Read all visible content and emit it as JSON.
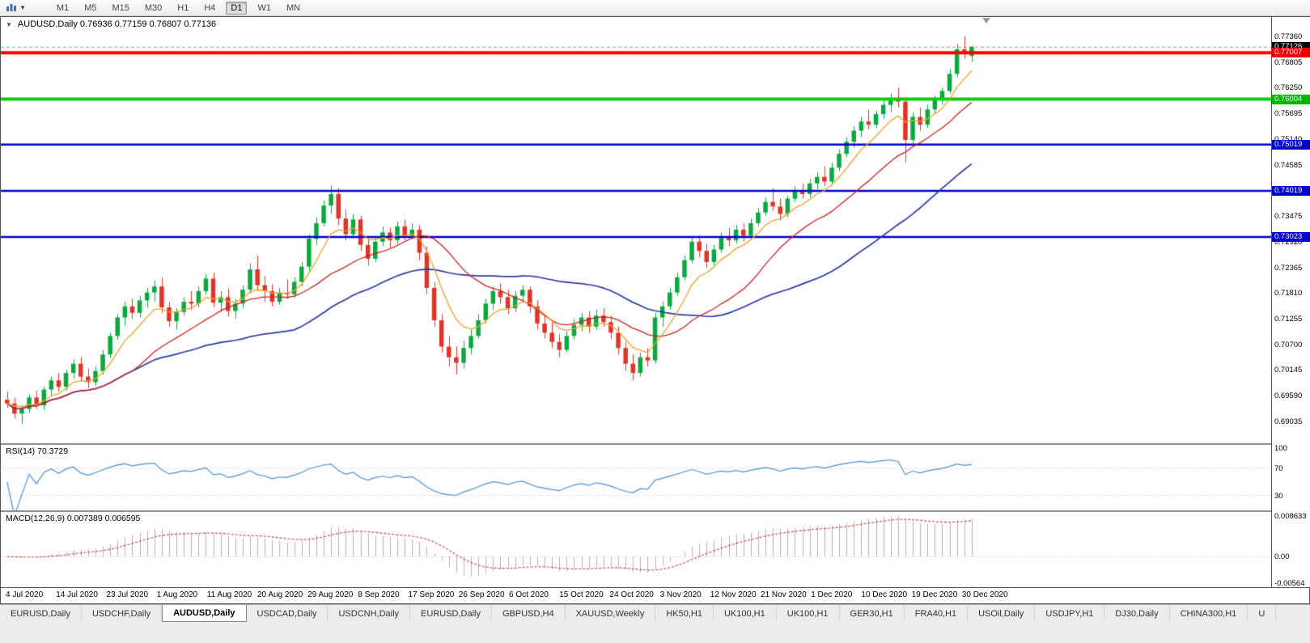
{
  "toolbar": {
    "periods": [
      "M1",
      "M5",
      "M15",
      "M30",
      "H1",
      "H4",
      "D1",
      "W1",
      "MN"
    ],
    "active_period": "D1"
  },
  "chart": {
    "symbol": "AUDUSD",
    "timeframe": "Daily",
    "title_text": "AUDUSD,Daily 0.76936 0.77159 0.76807 0.77136",
    "open": "0.76936",
    "high": "0.77159",
    "low": "0.76807",
    "close": "0.77136",
    "colors": {
      "up": "#0aa83f",
      "down": "#e03428",
      "ma_fast": "#eda32a",
      "ma_med": "#cc2222",
      "ma_slow": "#2a3aa0",
      "background": "#ffffff"
    },
    "bid_line": {
      "value": 0.77126,
      "color": "#a0a0a0"
    },
    "hlines": [
      {
        "value": 0.77007,
        "color": "#ff0000",
        "width": 4
      },
      {
        "value": 0.76004,
        "color": "#00d400",
        "width": 4
      },
      {
        "value": 0.75019,
        "color": "#0000d0",
        "width": 2.5
      },
      {
        "value": 0.74019,
        "color": "#0000d0",
        "width": 2.5
      },
      {
        "value": 0.73023,
        "color": "#0000d0",
        "width": 2.5
      }
    ],
    "price_axis_labels": [
      "0.77360",
      "0.76805",
      "0.76250",
      "0.75695",
      "0.75140",
      "0.74585",
      "0.73475",
      "0.72920",
      "0.72365",
      "0.71810",
      "0.71255",
      "0.70700",
      "0.70145",
      "0.69590",
      "0.69035"
    ],
    "price_boxes": [
      {
        "text": "0.77126",
        "value": 0.77126,
        "color": "#000000"
      },
      {
        "text": "0.77007",
        "value": 0.77007,
        "color": "#e80000"
      },
      {
        "text": "0.76004",
        "value": 0.76004,
        "color": "#00b400"
      },
      {
        "text": "0.75019",
        "value": 0.75019,
        "color": "#0000d0"
      },
      {
        "text": "0.74019",
        "value": 0.74019,
        "color": "#0000d0"
      },
      {
        "text": "0.73023",
        "value": 0.73023,
        "color": "#0000d0"
      }
    ]
  },
  "chart_data": {
    "type": "candlestick",
    "title": "AUDUSD,Daily",
    "ylim": [
      0.6856,
      0.7778
    ],
    "x_labels": [
      "4 Jul 2020",
      "14 Jul 2020",
      "23 Jul 2020",
      "1 Aug 2020",
      "11 Aug 2020",
      "20 Aug 2020",
      "29 Aug 2020",
      "8 Sep 2020",
      "17 Sep 2020",
      "26 Sep 2020",
      "6 Oct 2020",
      "15 Oct 2020",
      "24 Oct 2020",
      "3 Nov 2020",
      "12 Nov 2020",
      "21 Nov 2020",
      "1 Dec 2020",
      "10 Dec 2020",
      "19 Dec 2020",
      "30 Dec 2020"
    ],
    "candles": [
      [
        0.695,
        0.6968,
        0.6932,
        0.6942
      ],
      [
        0.6942,
        0.6955,
        0.691,
        0.692
      ],
      [
        0.692,
        0.6938,
        0.6898,
        0.693
      ],
      [
        0.693,
        0.6962,
        0.6922,
        0.6955
      ],
      [
        0.6955,
        0.697,
        0.693,
        0.6938
      ],
      [
        0.6938,
        0.6978,
        0.6928,
        0.6972
      ],
      [
        0.6972,
        0.7,
        0.696,
        0.6992
      ],
      [
        0.6992,
        0.7008,
        0.6968,
        0.6978
      ],
      [
        0.6978,
        0.7015,
        0.697,
        0.7008
      ],
      [
        0.7008,
        0.7038,
        0.6995,
        0.7028
      ],
      [
        0.7028,
        0.7042,
        0.699,
        0.7
      ],
      [
        0.7,
        0.7018,
        0.6975,
        0.6988
      ],
      [
        0.6988,
        0.7022,
        0.698,
        0.7012
      ],
      [
        0.7012,
        0.7058,
        0.7005,
        0.7048
      ],
      [
        0.7048,
        0.7095,
        0.704,
        0.7088
      ],
      [
        0.7088,
        0.7135,
        0.708,
        0.7128
      ],
      [
        0.7128,
        0.7162,
        0.711,
        0.7152
      ],
      [
        0.7152,
        0.7168,
        0.7125,
        0.7138
      ],
      [
        0.7138,
        0.7175,
        0.7128,
        0.7165
      ],
      [
        0.7165,
        0.7192,
        0.715,
        0.7182
      ],
      [
        0.7182,
        0.7208,
        0.7162,
        0.7195
      ],
      [
        0.7195,
        0.7215,
        0.7138,
        0.715
      ],
      [
        0.715,
        0.7162,
        0.7108,
        0.712
      ],
      [
        0.712,
        0.7148,
        0.7102,
        0.714
      ],
      [
        0.714,
        0.7172,
        0.7132,
        0.7162
      ],
      [
        0.7162,
        0.7185,
        0.7145,
        0.7158
      ],
      [
        0.7158,
        0.7195,
        0.715,
        0.7185
      ],
      [
        0.7185,
        0.7222,
        0.7178,
        0.7212
      ],
      [
        0.7212,
        0.7225,
        0.715,
        0.716
      ],
      [
        0.716,
        0.7185,
        0.714,
        0.7172
      ],
      [
        0.7172,
        0.719,
        0.713,
        0.7142
      ],
      [
        0.7142,
        0.7168,
        0.7125,
        0.7158
      ],
      [
        0.7158,
        0.7198,
        0.7148,
        0.7188
      ],
      [
        0.7188,
        0.7245,
        0.718,
        0.7232
      ],
      [
        0.7232,
        0.7262,
        0.7185,
        0.7198
      ],
      [
        0.7198,
        0.7218,
        0.7162,
        0.7185
      ],
      [
        0.7185,
        0.72,
        0.7152,
        0.7162
      ],
      [
        0.7162,
        0.7192,
        0.7155,
        0.7182
      ],
      [
        0.7182,
        0.721,
        0.7168,
        0.7178
      ],
      [
        0.7178,
        0.7215,
        0.717,
        0.7205
      ],
      [
        0.7205,
        0.7248,
        0.7195,
        0.7238
      ],
      [
        0.7238,
        0.7308,
        0.7228,
        0.7298
      ],
      [
        0.7298,
        0.7345,
        0.7285,
        0.7332
      ],
      [
        0.7332,
        0.7382,
        0.7325,
        0.737
      ],
      [
        0.737,
        0.7413,
        0.7352,
        0.7395
      ],
      [
        0.7395,
        0.7408,
        0.7328,
        0.7342
      ],
      [
        0.7342,
        0.7362,
        0.7295,
        0.7308
      ],
      [
        0.7308,
        0.7352,
        0.7298,
        0.734
      ],
      [
        0.734,
        0.7348,
        0.7272,
        0.7285
      ],
      [
        0.7285,
        0.7298,
        0.724,
        0.7255
      ],
      [
        0.7255,
        0.7302,
        0.7248,
        0.7292
      ],
      [
        0.7292,
        0.7325,
        0.7282,
        0.7312
      ],
      [
        0.7312,
        0.7322,
        0.7278,
        0.7295
      ],
      [
        0.7295,
        0.7335,
        0.7288,
        0.7325
      ],
      [
        0.7325,
        0.734,
        0.7295,
        0.7305
      ],
      [
        0.7305,
        0.7332,
        0.7298,
        0.7318
      ],
      [
        0.7318,
        0.7328,
        0.7252,
        0.7268
      ],
      [
        0.7268,
        0.7282,
        0.7178,
        0.7192
      ],
      [
        0.7192,
        0.7205,
        0.7108,
        0.7122
      ],
      [
        0.7122,
        0.7135,
        0.7052,
        0.7065
      ],
      [
        0.7065,
        0.7088,
        0.7022,
        0.7042
      ],
      [
        0.7042,
        0.7065,
        0.7005,
        0.703
      ],
      [
        0.703,
        0.7078,
        0.7018,
        0.7062
      ],
      [
        0.7062,
        0.7102,
        0.7048,
        0.7088
      ],
      [
        0.7088,
        0.7135,
        0.7082,
        0.7122
      ],
      [
        0.7122,
        0.7168,
        0.7115,
        0.7158
      ],
      [
        0.7158,
        0.7195,
        0.7145,
        0.7185
      ],
      [
        0.7185,
        0.7202,
        0.7158,
        0.7172
      ],
      [
        0.7172,
        0.7188,
        0.7135,
        0.7148
      ],
      [
        0.7148,
        0.7185,
        0.714,
        0.7175
      ],
      [
        0.7175,
        0.7198,
        0.7162,
        0.7188
      ],
      [
        0.7188,
        0.7195,
        0.7138,
        0.7152
      ],
      [
        0.7152,
        0.7165,
        0.7102,
        0.7115
      ],
      [
        0.7115,
        0.7132,
        0.7082,
        0.7095
      ],
      [
        0.7095,
        0.7118,
        0.7062,
        0.7075
      ],
      [
        0.7075,
        0.7092,
        0.7042,
        0.7058
      ],
      [
        0.7058,
        0.7098,
        0.7052,
        0.7088
      ],
      [
        0.7088,
        0.7125,
        0.708,
        0.7112
      ],
      [
        0.7112,
        0.7138,
        0.7098,
        0.7128
      ],
      [
        0.7128,
        0.7142,
        0.7095,
        0.7108
      ],
      [
        0.7108,
        0.7145,
        0.7102,
        0.7132
      ],
      [
        0.7132,
        0.7148,
        0.7108,
        0.7118
      ],
      [
        0.7118,
        0.7132,
        0.7082,
        0.7095
      ],
      [
        0.7095,
        0.7108,
        0.7048,
        0.7062
      ],
      [
        0.7062,
        0.7075,
        0.7012,
        0.7028
      ],
      [
        0.7028,
        0.7048,
        0.6992,
        0.7008
      ],
      [
        0.7008,
        0.7052,
        0.7,
        0.7042
      ],
      [
        0.7042,
        0.7062,
        0.7022,
        0.7035
      ],
      [
        0.7035,
        0.7138,
        0.7028,
        0.7128
      ],
      [
        0.7128,
        0.7162,
        0.7108,
        0.7152
      ],
      [
        0.7152,
        0.7192,
        0.7145,
        0.7182
      ],
      [
        0.7182,
        0.7225,
        0.7175,
        0.7215
      ],
      [
        0.7215,
        0.7262,
        0.7208,
        0.7252
      ],
      [
        0.7252,
        0.7302,
        0.7245,
        0.7292
      ],
      [
        0.7292,
        0.7305,
        0.7258,
        0.7272
      ],
      [
        0.7272,
        0.7288,
        0.7235,
        0.7248
      ],
      [
        0.7248,
        0.7285,
        0.724,
        0.7275
      ],
      [
        0.7275,
        0.7312,
        0.7268,
        0.7302
      ],
      [
        0.7302,
        0.7322,
        0.7282,
        0.7295
      ],
      [
        0.7295,
        0.7328,
        0.7288,
        0.7318
      ],
      [
        0.7318,
        0.7332,
        0.7292,
        0.7305
      ],
      [
        0.7305,
        0.7342,
        0.7298,
        0.7332
      ],
      [
        0.7332,
        0.7365,
        0.7325,
        0.7355
      ],
      [
        0.7355,
        0.7388,
        0.7348,
        0.7378
      ],
      [
        0.7378,
        0.7408,
        0.7358,
        0.7368
      ],
      [
        0.7368,
        0.7385,
        0.7338,
        0.7352
      ],
      [
        0.7352,
        0.7392,
        0.7345,
        0.7385
      ],
      [
        0.7385,
        0.7412,
        0.7378,
        0.7402
      ],
      [
        0.7402,
        0.7418,
        0.7385,
        0.7395
      ],
      [
        0.7395,
        0.7428,
        0.7388,
        0.7418
      ],
      [
        0.7418,
        0.7442,
        0.7405,
        0.7432
      ],
      [
        0.7432,
        0.7455,
        0.7412,
        0.7422
      ],
      [
        0.7422,
        0.7462,
        0.7415,
        0.7452
      ],
      [
        0.7452,
        0.7492,
        0.7445,
        0.7482
      ],
      [
        0.7482,
        0.7518,
        0.7475,
        0.7508
      ],
      [
        0.7508,
        0.7542,
        0.7495,
        0.7532
      ],
      [
        0.7532,
        0.7562,
        0.7518,
        0.7552
      ],
      [
        0.7552,
        0.7578,
        0.7535,
        0.7545
      ],
      [
        0.7545,
        0.7575,
        0.7538,
        0.7568
      ],
      [
        0.7568,
        0.7598,
        0.7558,
        0.7588
      ],
      [
        0.7588,
        0.7612,
        0.7572,
        0.7602
      ],
      [
        0.7602,
        0.7625,
        0.7582,
        0.7595
      ],
      [
        0.7595,
        0.7605,
        0.7462,
        0.7512
      ],
      [
        0.7512,
        0.7572,
        0.7505,
        0.7562
      ],
      [
        0.7562,
        0.7582,
        0.7532,
        0.7545
      ],
      [
        0.7545,
        0.7588,
        0.7538,
        0.7578
      ],
      [
        0.7578,
        0.7608,
        0.7568,
        0.7598
      ],
      [
        0.7598,
        0.7625,
        0.7588,
        0.7618
      ],
      [
        0.7618,
        0.7665,
        0.7612,
        0.7655
      ],
      [
        0.7655,
        0.772,
        0.7648,
        0.7708
      ],
      [
        0.7708,
        0.7736,
        0.7688,
        0.7698
      ],
      [
        0.76936,
        0.77159,
        0.76807,
        0.77136
      ]
    ]
  },
  "rsi": {
    "label": "RSI(14)",
    "value": "70.3729",
    "color": "#4a90d2",
    "levels": [
      70,
      30
    ],
    "scale_labels": [
      "100",
      "70",
      "30"
    ],
    "scale_values": [
      100,
      70,
      30
    ]
  },
  "macd": {
    "label": "MACD(12,26,9)",
    "values": "0.007389 0.006595",
    "histogram_color": "#b2b2b2",
    "signal_color": "#d03a3a",
    "scale_labels": [
      "0.008633",
      "0.00",
      "-0.00564"
    ],
    "scale_values": [
      0.008633,
      0,
      -0.00564
    ]
  },
  "tabs": {
    "active_index": 2,
    "items": [
      "EURUSD,Daily",
      "USDCHF,Daily",
      "AUDUSD,Daily",
      "USDCAD,Daily",
      "USDCNH,Daily",
      "EURUSD,Daily",
      "GBPUSD,H4",
      "XAUUSD,Weekly",
      "HK50,H1",
      "UK100,H1",
      "UK100,H1",
      "GER30,H1",
      "FRA40,H1",
      "USOil,Daily",
      "USDJPY,H1",
      "DJ30,Daily",
      "CHINA300,H1",
      "U"
    ]
  }
}
